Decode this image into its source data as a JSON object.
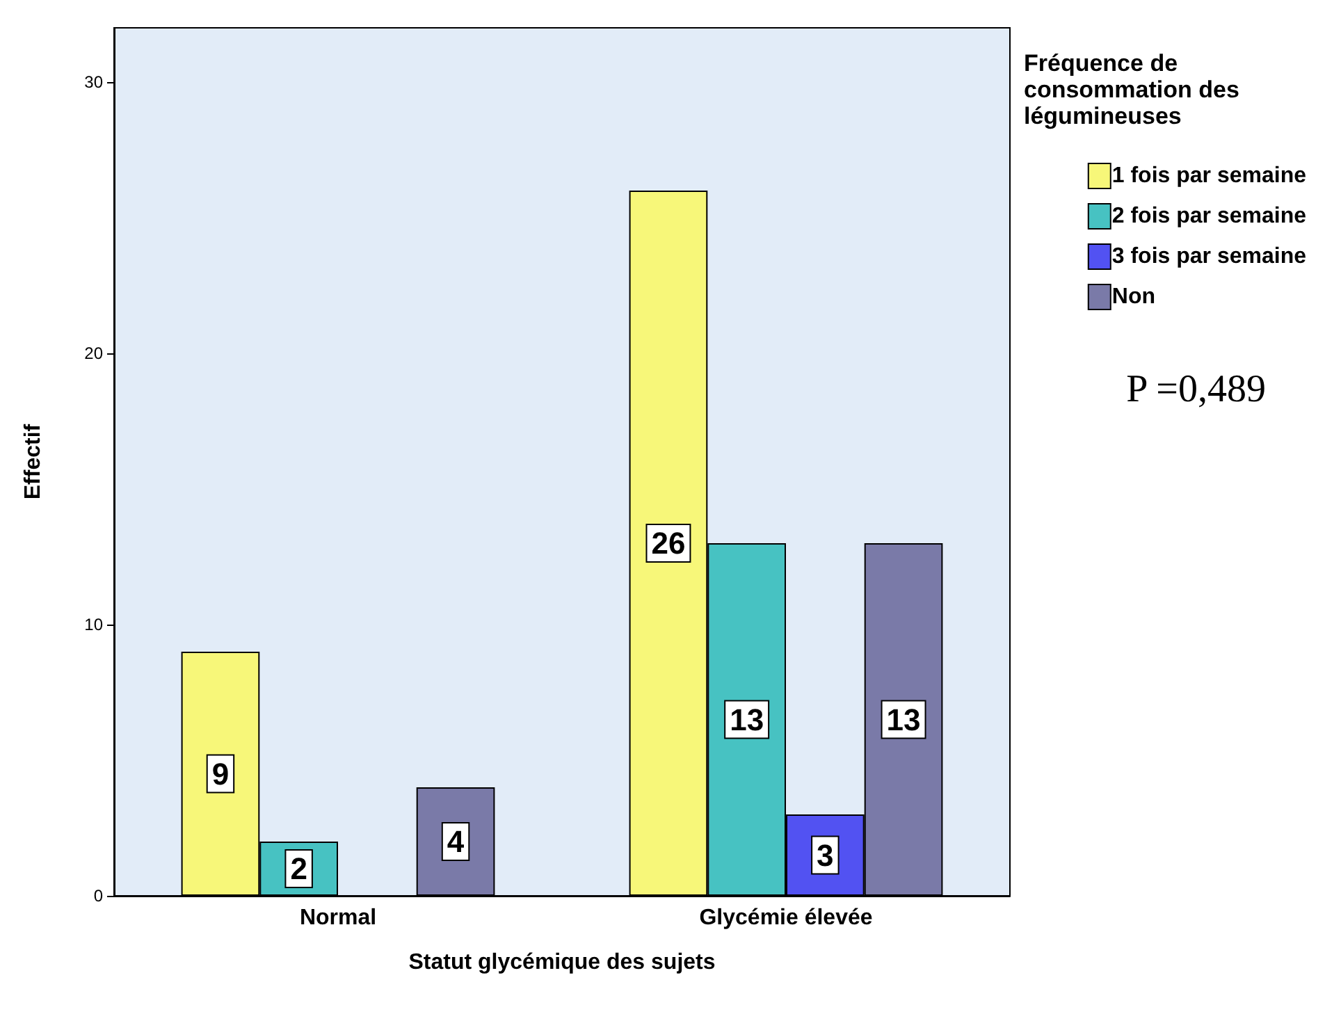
{
  "chart_data": {
    "type": "bar",
    "xlabel": "Statut glycémique des sujets",
    "ylabel": "Effectif",
    "legend_title": "Fréquence de consommation des légumineuses",
    "categories": [
      "Normal",
      "Glycémie élevée"
    ],
    "series": [
      {
        "name": "1 fois par semaine",
        "color": "#f7f779",
        "values": [
          9,
          26
        ]
      },
      {
        "name": "2 fois par semaine",
        "color": "#47c2c2",
        "values": [
          2,
          13
        ]
      },
      {
        "name": "3 fois par semaine",
        "color": "#5252f2",
        "values": [
          null,
          3
        ]
      },
      {
        "name": "Non",
        "color": "#7a7aa8",
        "values": [
          4,
          13
        ]
      }
    ],
    "ylim": [
      0,
      32
    ],
    "yticks": [
      0,
      10,
      20,
      30
    ],
    "grid": false,
    "legend": "top right",
    "data_labels": true,
    "annotations": [
      "P =0,489"
    ]
  }
}
